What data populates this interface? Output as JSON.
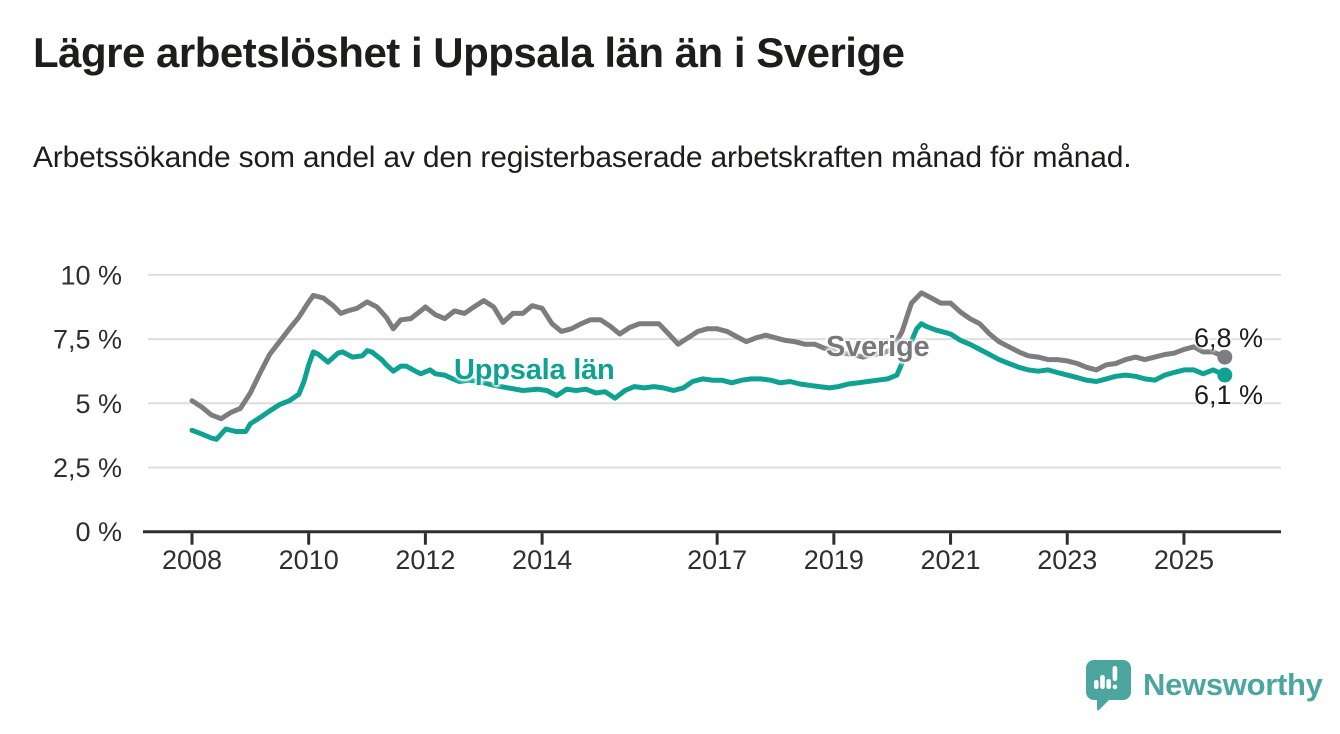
{
  "page": {
    "title": "Lägre arbetslöshet i Uppsala län än i Sverige",
    "subtitle": "Arbetssökande som andel av den registerbaserade arbetskraften månad för månad."
  },
  "branding": {
    "name": "Newsworthy",
    "logo_icon": "speech-bubble-bar-chart-icon",
    "logo_color": "#4ca6a0"
  },
  "colors": {
    "title_text": "#1d1d1b",
    "tick_text": "#2f2f2f",
    "axis": "#2e2e2e",
    "grid": "#dedede",
    "sverige_line": "#7d7d81",
    "sverige_label": "#77777c",
    "uppsala_line": "#0fa292",
    "background": "#ffffff"
  },
  "chart_data": {
    "type": "line",
    "title": "Lägre arbetslöshet i Uppsala län än i Sverige",
    "subtitle": "Arbetssökande som andel av den registerbaserade arbetskraften månad för månad.",
    "xlabel": "",
    "ylabel": "",
    "unit": "%",
    "grid": "horizontal",
    "legend_position": "inline-labels",
    "xlim": [
      2008,
      2025.9
    ],
    "ylim": [
      0,
      10.4
    ],
    "x_ticks": [
      2008,
      2010,
      2012,
      2014,
      2017,
      2019,
      2021,
      2023,
      2025
    ],
    "y_ticks": [
      {
        "value": 0,
        "label": "0 %"
      },
      {
        "value": 2.5,
        "label": "2,5 %"
      },
      {
        "value": 5,
        "label": "5 %"
      },
      {
        "value": 7.5,
        "label": "7,5 %"
      },
      {
        "value": 10,
        "label": "10 %"
      }
    ],
    "series": [
      {
        "name": "Sverige",
        "color": "#7d7d81",
        "end_label": "6,8 %",
        "end_value": 6.8,
        "points": [
          [
            2008,
            5.1
          ],
          [
            2008.17,
            4.85
          ],
          [
            2008.33,
            4.55
          ],
          [
            2008.5,
            4.4
          ],
          [
            2008.67,
            4.65
          ],
          [
            2008.83,
            4.8
          ],
          [
            2009,
            5.4
          ],
          [
            2009.17,
            6.2
          ],
          [
            2009.33,
            6.9
          ],
          [
            2009.5,
            7.4
          ],
          [
            2009.67,
            7.9
          ],
          [
            2009.83,
            8.35
          ],
          [
            2010,
            8.95
          ],
          [
            2010.08,
            9.2
          ],
          [
            2010.25,
            9.1
          ],
          [
            2010.42,
            8.8
          ],
          [
            2010.55,
            8.5
          ],
          [
            2010.67,
            8.6
          ],
          [
            2010.83,
            8.7
          ],
          [
            2011,
            8.95
          ],
          [
            2011.17,
            8.75
          ],
          [
            2011.33,
            8.35
          ],
          [
            2011.45,
            7.9
          ],
          [
            2011.58,
            8.25
          ],
          [
            2011.75,
            8.3
          ],
          [
            2011.92,
            8.6
          ],
          [
            2012,
            8.75
          ],
          [
            2012.17,
            8.45
          ],
          [
            2012.33,
            8.3
          ],
          [
            2012.5,
            8.6
          ],
          [
            2012.67,
            8.5
          ],
          [
            2012.83,
            8.75
          ],
          [
            2013,
            9.0
          ],
          [
            2013.17,
            8.75
          ],
          [
            2013.33,
            8.15
          ],
          [
            2013.5,
            8.5
          ],
          [
            2013.67,
            8.5
          ],
          [
            2013.83,
            8.8
          ],
          [
            2014,
            8.7
          ],
          [
            2014.17,
            8.1
          ],
          [
            2014.33,
            7.8
          ],
          [
            2014.5,
            7.9
          ],
          [
            2014.67,
            8.1
          ],
          [
            2014.83,
            8.25
          ],
          [
            2015,
            8.25
          ],
          [
            2015.17,
            8.0
          ],
          [
            2015.33,
            7.7
          ],
          [
            2015.5,
            7.95
          ],
          [
            2015.67,
            8.1
          ],
          [
            2015.83,
            8.1
          ],
          [
            2016,
            8.1
          ],
          [
            2016.17,
            7.7
          ],
          [
            2016.33,
            7.3
          ],
          [
            2016.5,
            7.55
          ],
          [
            2016.67,
            7.8
          ],
          [
            2016.83,
            7.9
          ],
          [
            2017,
            7.9
          ],
          [
            2017.17,
            7.8
          ],
          [
            2017.33,
            7.6
          ],
          [
            2017.5,
            7.4
          ],
          [
            2017.67,
            7.55
          ],
          [
            2017.83,
            7.65
          ],
          [
            2018,
            7.55
          ],
          [
            2018.17,
            7.45
          ],
          [
            2018.33,
            7.4
          ],
          [
            2018.5,
            7.3
          ],
          [
            2018.67,
            7.3
          ],
          [
            2018.83,
            7.15
          ],
          [
            2019,
            7.05
          ],
          [
            2019.17,
            6.95
          ],
          [
            2019.33,
            6.9
          ],
          [
            2019.5,
            6.8
          ],
          [
            2019.67,
            6.9
          ],
          [
            2019.83,
            6.95
          ],
          [
            2020,
            7.1
          ],
          [
            2020.17,
            7.8
          ],
          [
            2020.33,
            8.9
          ],
          [
            2020.5,
            9.3
          ],
          [
            2020.67,
            9.1
          ],
          [
            2020.83,
            8.9
          ],
          [
            2021,
            8.9
          ],
          [
            2021.17,
            8.55
          ],
          [
            2021.33,
            8.3
          ],
          [
            2021.5,
            8.1
          ],
          [
            2021.67,
            7.7
          ],
          [
            2021.83,
            7.4
          ],
          [
            2022,
            7.2
          ],
          [
            2022.17,
            7.0
          ],
          [
            2022.33,
            6.85
          ],
          [
            2022.5,
            6.8
          ],
          [
            2022.67,
            6.7
          ],
          [
            2022.83,
            6.7
          ],
          [
            2023,
            6.65
          ],
          [
            2023.17,
            6.55
          ],
          [
            2023.33,
            6.4
          ],
          [
            2023.5,
            6.3
          ],
          [
            2023.67,
            6.5
          ],
          [
            2023.83,
            6.55
          ],
          [
            2024,
            6.7
          ],
          [
            2024.17,
            6.8
          ],
          [
            2024.33,
            6.7
          ],
          [
            2024.5,
            6.8
          ],
          [
            2024.67,
            6.9
          ],
          [
            2024.83,
            6.95
          ],
          [
            2025,
            7.1
          ],
          [
            2025.17,
            7.2
          ],
          [
            2025.33,
            7.0
          ],
          [
            2025.5,
            7.0
          ],
          [
            2025.7,
            6.8
          ]
        ]
      },
      {
        "name": "Uppsala län",
        "color": "#0fa292",
        "end_label": "6,1 %",
        "end_value": 6.1,
        "points": [
          [
            2008,
            3.95
          ],
          [
            2008.17,
            3.8
          ],
          [
            2008.33,
            3.65
          ],
          [
            2008.42,
            3.6
          ],
          [
            2008.58,
            4.0
          ],
          [
            2008.75,
            3.9
          ],
          [
            2008.92,
            3.9
          ],
          [
            2009,
            4.2
          ],
          [
            2009.17,
            4.45
          ],
          [
            2009.33,
            4.7
          ],
          [
            2009.5,
            4.95
          ],
          [
            2009.67,
            5.1
          ],
          [
            2009.83,
            5.35
          ],
          [
            2009.92,
            5.85
          ],
          [
            2010,
            6.5
          ],
          [
            2010.08,
            7.0
          ],
          [
            2010.17,
            6.9
          ],
          [
            2010.33,
            6.6
          ],
          [
            2010.5,
            6.95
          ],
          [
            2010.58,
            7.0
          ],
          [
            2010.75,
            6.8
          ],
          [
            2010.92,
            6.85
          ],
          [
            2011,
            7.05
          ],
          [
            2011.08,
            7.0
          ],
          [
            2011.25,
            6.7
          ],
          [
            2011.33,
            6.5
          ],
          [
            2011.45,
            6.25
          ],
          [
            2011.58,
            6.45
          ],
          [
            2011.67,
            6.45
          ],
          [
            2011.83,
            6.25
          ],
          [
            2011.92,
            6.15
          ],
          [
            2012.08,
            6.3
          ],
          [
            2012.17,
            6.15
          ],
          [
            2012.33,
            6.1
          ],
          [
            2012.42,
            6.0
          ],
          [
            2012.58,
            5.85
          ],
          [
            2012.75,
            5.9
          ],
          [
            2012.92,
            5.85
          ],
          [
            2013.17,
            5.7
          ],
          [
            2013.42,
            5.6
          ],
          [
            2013.67,
            5.5
          ],
          [
            2013.92,
            5.55
          ],
          [
            2014.08,
            5.5
          ],
          [
            2014.25,
            5.3
          ],
          [
            2014.42,
            5.55
          ],
          [
            2014.58,
            5.5
          ],
          [
            2014.75,
            5.55
          ],
          [
            2014.92,
            5.4
          ],
          [
            2015.08,
            5.45
          ],
          [
            2015.25,
            5.2
          ],
          [
            2015.42,
            5.5
          ],
          [
            2015.58,
            5.65
          ],
          [
            2015.75,
            5.6
          ],
          [
            2015.92,
            5.65
          ],
          [
            2016.08,
            5.6
          ],
          [
            2016.25,
            5.5
          ],
          [
            2016.42,
            5.6
          ],
          [
            2016.58,
            5.85
          ],
          [
            2016.75,
            5.95
          ],
          [
            2016.92,
            5.9
          ],
          [
            2017.08,
            5.9
          ],
          [
            2017.25,
            5.8
          ],
          [
            2017.42,
            5.9
          ],
          [
            2017.58,
            5.95
          ],
          [
            2017.75,
            5.95
          ],
          [
            2017.92,
            5.9
          ],
          [
            2018.08,
            5.8
          ],
          [
            2018.25,
            5.85
          ],
          [
            2018.42,
            5.75
          ],
          [
            2018.58,
            5.7
          ],
          [
            2018.75,
            5.65
          ],
          [
            2018.92,
            5.6
          ],
          [
            2019.08,
            5.65
          ],
          [
            2019.25,
            5.75
          ],
          [
            2019.42,
            5.8
          ],
          [
            2019.58,
            5.85
          ],
          [
            2019.75,
            5.9
          ],
          [
            2019.92,
            5.95
          ],
          [
            2020.08,
            6.1
          ],
          [
            2020.25,
            7.0
          ],
          [
            2020.42,
            7.9
          ],
          [
            2020.5,
            8.1
          ],
          [
            2020.58,
            8.0
          ],
          [
            2020.75,
            7.85
          ],
          [
            2020.92,
            7.75
          ],
          [
            2021,
            7.7
          ],
          [
            2021.17,
            7.45
          ],
          [
            2021.33,
            7.3
          ],
          [
            2021.5,
            7.1
          ],
          [
            2021.67,
            6.9
          ],
          [
            2021.83,
            6.7
          ],
          [
            2022,
            6.55
          ],
          [
            2022.17,
            6.4
          ],
          [
            2022.33,
            6.3
          ],
          [
            2022.5,
            6.25
          ],
          [
            2022.67,
            6.3
          ],
          [
            2022.83,
            6.2
          ],
          [
            2023,
            6.1
          ],
          [
            2023.17,
            6.0
          ],
          [
            2023.33,
            5.9
          ],
          [
            2023.5,
            5.85
          ],
          [
            2023.67,
            5.95
          ],
          [
            2023.83,
            6.05
          ],
          [
            2024,
            6.1
          ],
          [
            2024.17,
            6.05
          ],
          [
            2024.33,
            5.95
          ],
          [
            2024.5,
            5.9
          ],
          [
            2024.67,
            6.1
          ],
          [
            2024.83,
            6.2
          ],
          [
            2025,
            6.3
          ],
          [
            2025.17,
            6.3
          ],
          [
            2025.33,
            6.15
          ],
          [
            2025.5,
            6.3
          ],
          [
            2025.7,
            6.1
          ]
        ]
      }
    ]
  }
}
